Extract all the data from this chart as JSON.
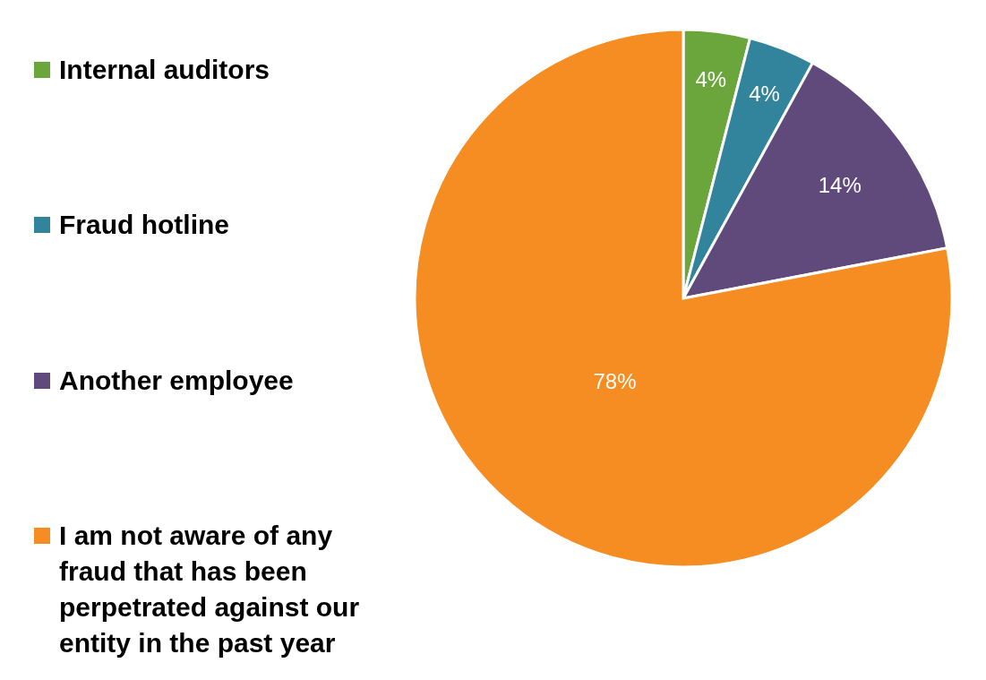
{
  "chart_data": {
    "type": "pie",
    "categories": [
      "Internal auditors",
      "Fraud hotline",
      "Another employee",
      "I am not aware of any fraud that has been perpetrated against our entity in the past year"
    ],
    "values": [
      4,
      4,
      14,
      78
    ],
    "colors": [
      "#6aa63b",
      "#31849b",
      "#604a7b",
      "#f68d22"
    ],
    "value_labels": [
      "4%",
      "4%",
      "14%",
      "78%"
    ],
    "legend": "left"
  }
}
